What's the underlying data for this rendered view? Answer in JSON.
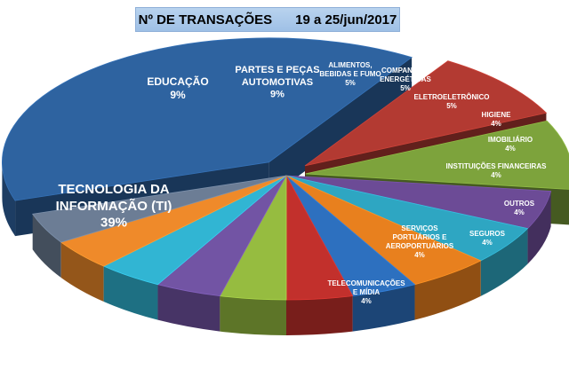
{
  "chart_data": {
    "type": "pie",
    "title": "Nº DE TRANSAÇÕES",
    "subtitle": "19 a 25/jun/2017",
    "unit": "%",
    "slices": [
      {
        "label": "TECNOLOGIA DA INFORMAÇÃO (TI)",
        "value": 39,
        "value_label": "39%",
        "color": "#2e63a0",
        "exploded": true
      },
      {
        "label": "EDUCAÇÃO",
        "value": 9,
        "value_label": "9%",
        "color": "#b33a32",
        "exploded": true
      },
      {
        "label": "PARTES E PEÇAS AUTOMOTIVAS",
        "value": 9,
        "value_label": "9%",
        "color": "#7da33c",
        "exploded": true
      },
      {
        "label": "ALIMENTOS, BEBIDAS E FUMO",
        "value": 5,
        "value_label": "5%",
        "color": "#6c4b96"
      },
      {
        "label": "COMPANHIAS ENERGÉTICAS",
        "value": 5,
        "value_label": "5%",
        "color": "#2ea6c2"
      },
      {
        "label": "ELETROELETRÔNICO",
        "value": 5,
        "value_label": "5%",
        "color": "#e8801e"
      },
      {
        "label": "HIGIENE",
        "value": 4,
        "value_label": "4%",
        "color": "#2d70bf"
      },
      {
        "label": "IMOBILIÁRIO",
        "value": 4,
        "value_label": "4%",
        "color": "#c2302c"
      },
      {
        "label": "INSTITUIÇÕES FINANCEIRAS",
        "value": 4,
        "value_label": "4%",
        "color": "#96bc40"
      },
      {
        "label": "OUTROS",
        "value": 4,
        "value_label": "4%",
        "color": "#7254a4"
      },
      {
        "label": "SEGUROS",
        "value": 4,
        "value_label": "4%",
        "color": "#31b5d3"
      },
      {
        "label": "SERVIÇOS PORTUÁRIOS E AEROPORTUÁRIOS",
        "value": 4,
        "value_label": "4%",
        "color": "#ef8a2a"
      },
      {
        "label": "TELECOMUNICAÇÕES E MÍDIA",
        "value": 4,
        "value_label": "4%",
        "color": "#6c7d95"
      }
    ],
    "legend": "none"
  }
}
